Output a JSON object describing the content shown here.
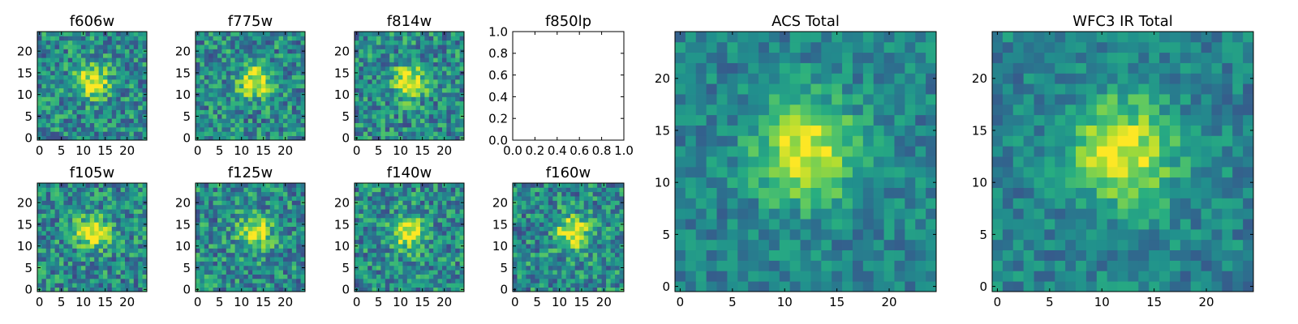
{
  "chart_data": [
    {
      "type": "heatmap",
      "title": "f606w",
      "colormap": "viridis",
      "grid": false,
      "x_ticks": [
        "0",
        "5",
        "10",
        "15",
        "20"
      ],
      "y_ticks": [
        "0",
        "5",
        "10",
        "15",
        "20"
      ],
      "xlim": [
        -0.5,
        24.5
      ],
      "ylim": [
        -0.5,
        24.5
      ],
      "peak": {
        "x": 12,
        "y": 13
      }
    },
    {
      "type": "heatmap",
      "title": "f775w",
      "colormap": "viridis",
      "grid": false,
      "x_ticks": [
        "0",
        "5",
        "10",
        "15",
        "20"
      ],
      "y_ticks": [
        "0",
        "5",
        "10",
        "15",
        "20"
      ],
      "xlim": [
        -0.5,
        24.5
      ],
      "ylim": [
        -0.5,
        24.5
      ],
      "peak": {
        "x": 13,
        "y": 13
      }
    },
    {
      "type": "heatmap",
      "title": "f814w",
      "colormap": "viridis",
      "grid": false,
      "x_ticks": [
        "0",
        "5",
        "10",
        "15",
        "20"
      ],
      "y_ticks": [
        "0",
        "5",
        "10",
        "15",
        "20"
      ],
      "xlim": [
        -0.5,
        24.5
      ],
      "ylim": [
        -0.5,
        24.5
      ],
      "peak": {
        "x": 12,
        "y": 13
      }
    },
    {
      "type": "empty",
      "title": "f850lp",
      "grid": false,
      "x_ticks": [
        "0.0",
        "0.2",
        "0.4",
        "0.6",
        "0.8",
        "1.0"
      ],
      "y_ticks": [
        "0.0",
        "0.2",
        "0.4",
        "0.6",
        "0.8",
        "1.0"
      ],
      "xlim": [
        0,
        1
      ],
      "ylim": [
        0,
        1
      ]
    },
    {
      "type": "heatmap",
      "title": "f105w",
      "colormap": "viridis",
      "grid": false,
      "x_ticks": [
        "0",
        "5",
        "10",
        "15",
        "20"
      ],
      "y_ticks": [
        "0",
        "5",
        "10",
        "15",
        "20"
      ],
      "xlim": [
        -0.5,
        24.5
      ],
      "ylim": [
        -0.5,
        24.5
      ],
      "peak": {
        "x": 12,
        "y": 13
      }
    },
    {
      "type": "heatmap",
      "title": "f125w",
      "colormap": "viridis",
      "grid": false,
      "x_ticks": [
        "0",
        "5",
        "10",
        "15",
        "20"
      ],
      "y_ticks": [
        "0",
        "5",
        "10",
        "15",
        "20"
      ],
      "xlim": [
        -0.5,
        24.5
      ],
      "ylim": [
        -0.5,
        24.5
      ],
      "peak": {
        "x": 13,
        "y": 13
      }
    },
    {
      "type": "heatmap",
      "title": "f140w",
      "colormap": "viridis",
      "grid": false,
      "x_ticks": [
        "0",
        "5",
        "10",
        "15",
        "20"
      ],
      "y_ticks": [
        "0",
        "5",
        "10",
        "15",
        "20"
      ],
      "xlim": [
        -0.5,
        24.5
      ],
      "ylim": [
        -0.5,
        24.5
      ],
      "peak": {
        "x": 12,
        "y": 13
      }
    },
    {
      "type": "heatmap",
      "title": "f160w",
      "colormap": "viridis",
      "grid": false,
      "x_ticks": [
        "0",
        "5",
        "10",
        "15",
        "20"
      ],
      "y_ticks": [
        "0",
        "5",
        "10",
        "15",
        "20"
      ],
      "xlim": [
        -0.5,
        24.5
      ],
      "ylim": [
        -0.5,
        24.5
      ],
      "peak": {
        "x": 13,
        "y": 13
      }
    },
    {
      "type": "heatmap",
      "title": "ACS Total",
      "colormap": "viridis",
      "grid": false,
      "x_ticks": [
        "0",
        "5",
        "10",
        "15",
        "20"
      ],
      "y_ticks": [
        "0",
        "5",
        "10",
        "15",
        "20"
      ],
      "xlim": [
        -0.5,
        24.5
      ],
      "ylim": [
        -0.5,
        24.5
      ],
      "peak": {
        "x": 12,
        "y": 13
      }
    },
    {
      "type": "heatmap",
      "title": "WFC3 IR Total",
      "colormap": "viridis",
      "grid": false,
      "x_ticks": [
        "0",
        "5",
        "10",
        "15",
        "20"
      ],
      "y_ticks": [
        "0",
        "5",
        "10",
        "15",
        "20"
      ],
      "xlim": [
        -0.5,
        24.5
      ],
      "ylim": [
        -0.5,
        24.5
      ],
      "peak": {
        "x": 12,
        "y": 13
      }
    }
  ]
}
